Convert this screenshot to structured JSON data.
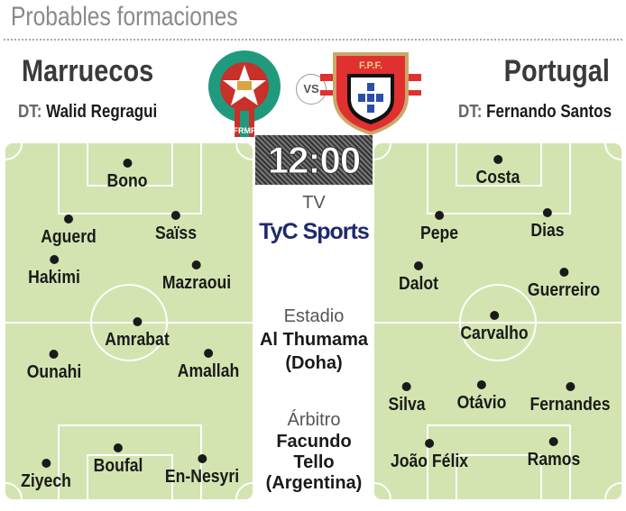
{
  "header": {
    "title": "Probables formaciones"
  },
  "home": {
    "name": "Marruecos",
    "coach_label": "DT:",
    "coach": "Walid Regragui",
    "crest_text": "FRMF",
    "players": [
      "Bono",
      "Aguerd",
      "Saïss",
      "Hakimi",
      "Mazraoui",
      "Amrabat",
      "Ounahi",
      "Amallah",
      "Ziyech",
      "Boufal",
      "En-Nesyri"
    ]
  },
  "away": {
    "name": "Portugal",
    "coach_label": "DT:",
    "coach": "Fernando Santos",
    "crest_text": "F.P.F.",
    "players": [
      "Costa",
      "Pepe",
      "Dias",
      "Dalot",
      "Guerreiro",
      "Carvalho",
      "Silva",
      "Otávio",
      "Fernandes",
      "João Félix",
      "Ramos"
    ]
  },
  "vs": "VS",
  "match": {
    "time": "12:00",
    "tv_label": "TV",
    "tv": "TyC Sports",
    "stadium_label": "Estadio",
    "stadium": "Al Thumama",
    "city": "(Doha)",
    "referee_label": "Árbitro",
    "referee_first": "Facundo",
    "referee_last": "Tello",
    "referee_country": "(Argentina)"
  },
  "colors": {
    "pitch": "#d3e4b0",
    "tyc": "#1f2a6b",
    "morocco_green": "#1f9a7c",
    "portugal_red": "#e03030"
  }
}
